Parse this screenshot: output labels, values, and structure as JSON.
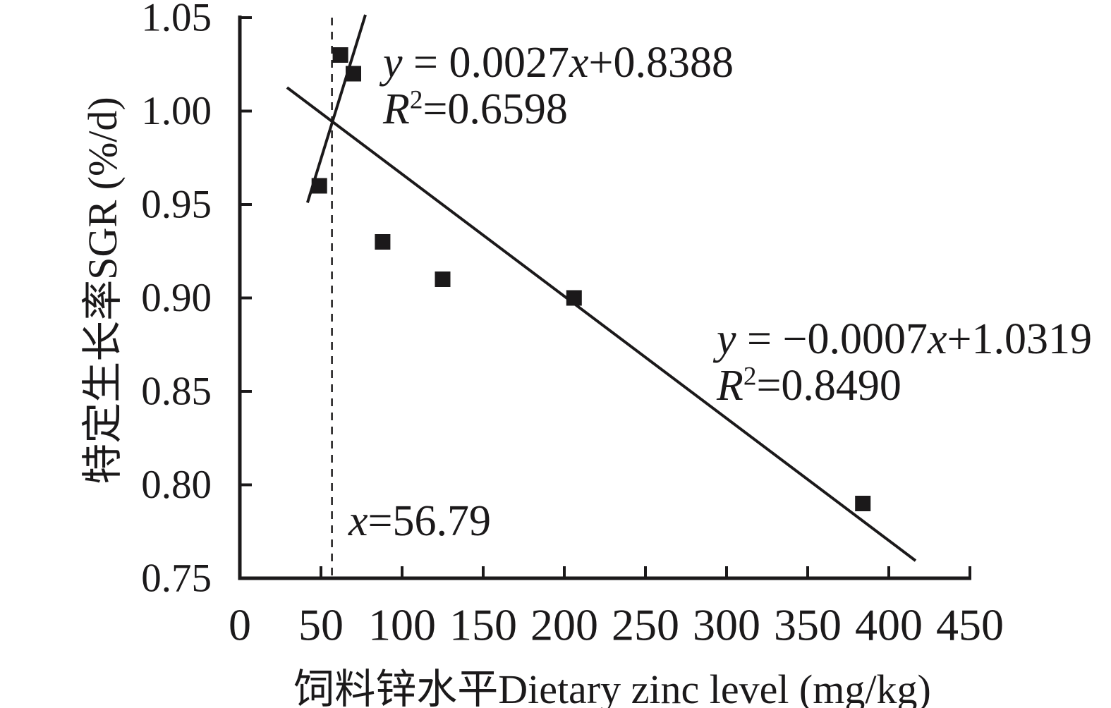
{
  "figure": {
    "background": "#ffffff",
    "ink_color": "#1b191a"
  },
  "chart_data": {
    "type": "scatter",
    "title": "",
    "xlabel": "饲料锌水平Dietary zinc level (mg/kg)",
    "ylabel": "特定生长率SGR (%/d)",
    "xlim": [
      0,
      450
    ],
    "ylim": [
      0.75,
      1.05
    ],
    "x_ticks": [
      "0",
      "50",
      "100",
      "150",
      "200",
      "250",
      "300",
      "350",
      "400",
      "450"
    ],
    "y_ticks": [
      "1.05",
      "1.00",
      "0.95",
      "0.90",
      "0.85",
      "0.80",
      "0.75"
    ],
    "grid": false,
    "legend": "none",
    "marker": "filled-square",
    "points": [
      {
        "x": 49,
        "y": 0.96
      },
      {
        "x": 62,
        "y": 1.03
      },
      {
        "x": 70,
        "y": 1.02
      },
      {
        "x": 88,
        "y": 0.93
      },
      {
        "x": 125,
        "y": 0.91
      },
      {
        "x": 206,
        "y": 0.9
      },
      {
        "x": 384,
        "y": 0.79
      }
    ],
    "regression_lines": [
      {
        "id": "ascending",
        "equation_text": "y = 0.0027x+0.8388",
        "r2_text": "R²=0.6598",
        "segment": {
          "x1": 41.7,
          "y1": 0.951,
          "x2": 77.4,
          "y2": 1.0515
        }
      },
      {
        "id": "descending",
        "equation_text": "y = −0.0007x+1.0319",
        "r2_text": "R²=0.8490",
        "segment": {
          "x1": 29.1,
          "y1": 1.0126,
          "x2": 416.5,
          "y2": 0.7594
        }
      }
    ],
    "breakpoint": {
      "x": 56.79,
      "label": "x=56.79",
      "line_style": "dashed-vertical"
    }
  },
  "annotations": {
    "eq1_line1": [
      {
        "text": "y",
        "italic": true
      },
      {
        "text": " = 0.0027",
        "italic": false
      },
      {
        "text": "x",
        "italic": true
      },
      {
        "text": "+0.8388",
        "italic": false
      }
    ],
    "eq1_line2": [
      {
        "text": "R",
        "italic": true
      },
      {
        "text": "2",
        "italic": false,
        "sup": true
      },
      {
        "text": "=0.6598",
        "italic": false
      }
    ],
    "eq2_line1": [
      {
        "text": "y",
        "italic": true
      },
      {
        "text": " = −0.0007",
        "italic": false
      },
      {
        "text": "x",
        "italic": true
      },
      {
        "text": "+1.0319",
        "italic": false
      }
    ],
    "eq2_line2": [
      {
        "text": "R",
        "italic": true
      },
      {
        "text": "2",
        "italic": false,
        "sup": true
      },
      {
        "text": "=0.8490",
        "italic": false
      }
    ],
    "breakpoint_label": [
      {
        "text": "x",
        "italic": true
      },
      {
        "text": "=56.79",
        "italic": false
      }
    ]
  }
}
